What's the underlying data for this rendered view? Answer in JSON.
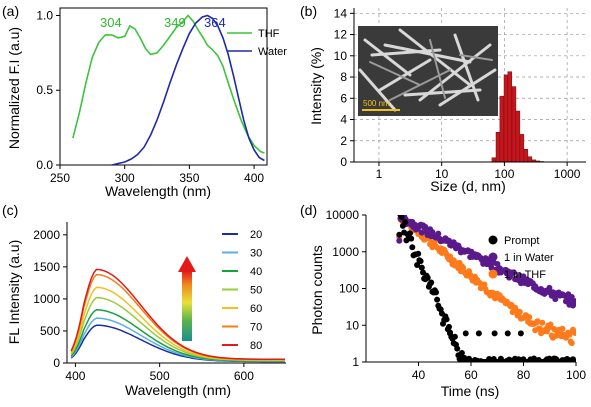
{
  "chart_data": [
    {
      "panel": "(a)",
      "type": "line",
      "xlabel": "Wavelength (nm)",
      "ylabel": "Normalized F.I (a.u)",
      "xlim": [
        250,
        410
      ],
      "ylim": [
        0,
        1.05
      ],
      "xticks": [
        250,
        300,
        350,
        400
      ],
      "yticks": [
        0.0,
        0.5,
        1.0
      ],
      "ytick_labels": [
        "0.0",
        "0.5",
        "1.0"
      ],
      "legend": "top-right",
      "annotations": [
        {
          "text": "304",
          "x": 304,
          "y": 1.0,
          "color": "#2eb82e"
        },
        {
          "text": "349",
          "x": 349,
          "y": 1.0,
          "color": "#2eb82e"
        },
        {
          "text": "364",
          "x": 364,
          "y": 1.0,
          "color": "#1f2aa8"
        }
      ],
      "series": [
        {
          "name": "THF",
          "color": "#3cc43c",
          "x": [
            260,
            265,
            270,
            275,
            280,
            285,
            290,
            295,
            300,
            304,
            308,
            312,
            316,
            320,
            325,
            330,
            335,
            340,
            345,
            349,
            353,
            357,
            360,
            364,
            368,
            372,
            376,
            380,
            385,
            390,
            395,
            400,
            405,
            408
          ],
          "y": [
            0.18,
            0.35,
            0.55,
            0.72,
            0.82,
            0.87,
            0.87,
            0.85,
            0.86,
            0.93,
            0.91,
            0.85,
            0.78,
            0.74,
            0.75,
            0.8,
            0.86,
            0.92,
            0.96,
            1.0,
            0.96,
            0.9,
            0.86,
            0.8,
            0.77,
            0.73,
            0.66,
            0.55,
            0.42,
            0.3,
            0.2,
            0.13,
            0.09,
            0.08
          ]
        },
        {
          "name": "Water",
          "color": "#1f2aa8",
          "x": [
            290,
            295,
            300,
            305,
            310,
            315,
            320,
            325,
            330,
            335,
            340,
            345,
            350,
            355,
            360,
            364,
            368,
            372,
            376,
            380,
            384,
            388,
            392,
            396,
            400,
            404,
            408
          ],
          "y": [
            0.0,
            0.01,
            0.02,
            0.04,
            0.07,
            0.12,
            0.2,
            0.3,
            0.42,
            0.55,
            0.67,
            0.78,
            0.88,
            0.95,
            0.99,
            1.0,
            0.98,
            0.93,
            0.85,
            0.74,
            0.6,
            0.45,
            0.3,
            0.18,
            0.1,
            0.05,
            0.03
          ]
        }
      ]
    },
    {
      "panel": "(b)",
      "type": "bar",
      "xlabel": "Size (d, nm)",
      "ylabel": "Intensity (%)",
      "xscale": "log",
      "xlim": [
        0.4,
        2000
      ],
      "ylim": [
        0,
        14.5
      ],
      "xticks": [
        1,
        10,
        100,
        1000
      ],
      "yticks": [
        0,
        2,
        4,
        6,
        8,
        10,
        12,
        14
      ],
      "inset_scale_label": "500 nm",
      "bar_color": "#c8161d",
      "x": [
        68,
        79,
        91,
        106,
        122,
        142,
        164,
        190,
        220,
        255,
        295,
        342,
        396,
        459
      ],
      "values": [
        0.4,
        2.8,
        6.2,
        8.2,
        8.5,
        7.1,
        4.8,
        2.6,
        1.2,
        0.5,
        0.2,
        0.1,
        0.05,
        0.02
      ]
    },
    {
      "panel": "(c)",
      "type": "line",
      "xlabel": "Wavelength (nm)",
      "ylabel": "FL Intensity (a.u)",
      "xlim": [
        390,
        650
      ],
      "ylim": [
        0,
        2200
      ],
      "xticks": [
        400,
        500,
        600
      ],
      "yticks": [
        0,
        500,
        1000,
        1500,
        2000
      ],
      "legend": "right",
      "peak_wavelength": 425,
      "series": [
        {
          "name": "20",
          "color": "#1a2ea0",
          "peak": 590
        },
        {
          "name": "30",
          "color": "#5ab0e6",
          "peak": 700
        },
        {
          "name": "40",
          "color": "#17a23c",
          "peak": 830
        },
        {
          "name": "50",
          "color": "#98cc3a",
          "peak": 1020
        },
        {
          "name": "60",
          "color": "#f2c21a",
          "peak": 1180
        },
        {
          "name": "70",
          "color": "#f07f18",
          "peak": 1380
        },
        {
          "name": "80",
          "color": "#e21a1a",
          "peak": 1460
        }
      ]
    },
    {
      "panel": "(d)",
      "type": "scatter",
      "xlabel": "Time (ns)",
      "ylabel": "Photon counts",
      "yscale": "log",
      "xlim": [
        20,
        100
      ],
      "ylim": [
        1,
        10000
      ],
      "xticks": [
        40,
        60,
        80,
        100
      ],
      "yticks": [
        1,
        10,
        100,
        1000,
        10000
      ],
      "legend": "top-right",
      "rise_time": 33,
      "series": [
        {
          "name": "Prompt",
          "color": "#000000",
          "tau": 2.6,
          "floor": 1
        },
        {
          "name": "1 in Water",
          "color": "#5a1a8c",
          "tau": 11.5,
          "floor": 14
        },
        {
          "name": "1 in THF",
          "color": "#ff7a1a",
          "tau": 7.2,
          "floor": 3
        }
      ]
    }
  ],
  "panels": {
    "a": {
      "label": "(a)",
      "legend": [
        "THF",
        "Water"
      ],
      "peaks": [
        "304",
        "349",
        "364"
      ],
      "xlabel": "Wavelength (nm)",
      "ylabel": "Normalized F.I (a.u)",
      "xticks": [
        "250",
        "300",
        "350",
        "400"
      ],
      "yticks": [
        "0.0",
        "0.5",
        "1.0"
      ]
    },
    "b": {
      "label": "(b)",
      "xlabel": "Size (d, nm)",
      "ylabel": "Intensity (%)",
      "xticks": [
        "1",
        "10",
        "100",
        "1000"
      ],
      "yticks": [
        "0",
        "2",
        "4",
        "6",
        "8",
        "10",
        "12",
        "14"
      ],
      "scale_bar": "500 nm"
    },
    "c": {
      "label": "(c)",
      "legend": [
        "20",
        "30",
        "40",
        "50",
        "60",
        "70",
        "80"
      ],
      "xlabel": "Wavelength (nm)",
      "ylabel": "FL Intensity (a.u)",
      "xticks": [
        "400",
        "500",
        "600"
      ],
      "yticks": [
        "0",
        "500",
        "1000",
        "1500",
        "2000"
      ]
    },
    "d": {
      "label": "(d)",
      "legend": [
        "Prompt",
        "1 in Water",
        "1 in THF"
      ],
      "xlabel": "Time (ns)",
      "ylabel": "Photon counts",
      "xticks": [
        "40",
        "60",
        "80",
        "100"
      ],
      "yticks": [
        "1",
        "10",
        "100",
        "1000",
        "10000"
      ]
    }
  }
}
